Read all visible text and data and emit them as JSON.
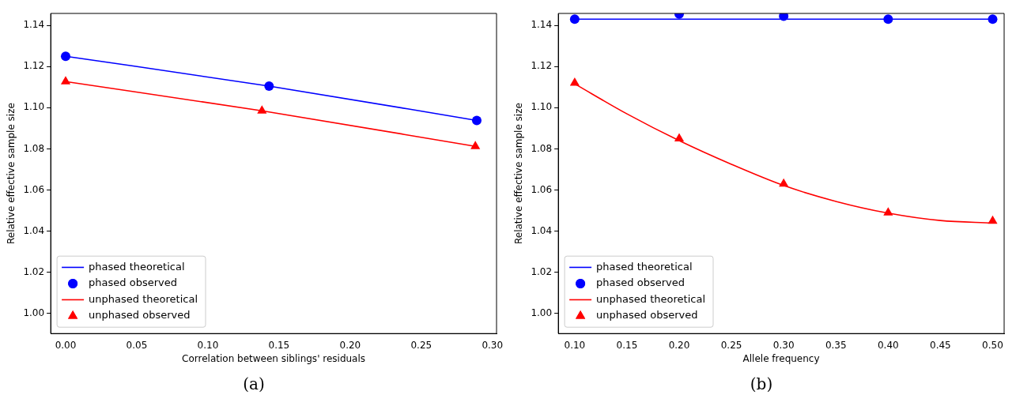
{
  "chart_data": [
    {
      "type": "line",
      "xlabel": "Correlation between siblings' residuals",
      "ylabel": "Relative effective sample size",
      "annotations": [
        "(a)"
      ],
      "legend": "bottom left",
      "grid": false,
      "xlim": [
        -0.0105,
        0.3029
      ],
      "xticks": [
        {
          "value": 0,
          "label": "0.00"
        },
        {
          "value": 0.05,
          "label": "0.05"
        },
        {
          "value": 0.1,
          "label": "0.10"
        },
        {
          "value": 0.15,
          "label": "0.15"
        },
        {
          "value": 0.2,
          "label": "0.20"
        },
        {
          "value": 0.25,
          "label": "0.25"
        },
        {
          "value": 0.3,
          "label": "0.30"
        }
      ],
      "ylim": [
        0.9903,
        1.1458
      ],
      "yticks": [
        {
          "value": 1,
          "label": "1.00"
        },
        {
          "value": 1.02,
          "label": "1.02"
        },
        {
          "value": 1.04,
          "label": "1.04"
        },
        {
          "value": 1.06,
          "label": "1.06"
        },
        {
          "value": 1.08,
          "label": "1.08"
        },
        {
          "value": 1.1,
          "label": "1.10"
        },
        {
          "value": 1.12,
          "label": "1.12"
        },
        {
          "value": 1.14,
          "label": "1.14"
        }
      ],
      "series": [
        {
          "name": "phased theoretical",
          "type": "line",
          "color": "#0000ff",
          "marker": "none",
          "x": [
            0,
            0.143,
            0.289
          ],
          "values": [
            1.125,
            1.1105,
            1.0938
          ]
        },
        {
          "name": "phased observed",
          "type": "scatter",
          "color": "#0000ff",
          "marker": "circle",
          "x": [
            0,
            0.143,
            0.289
          ],
          "values": [
            1.125,
            1.1105,
            1.0938
          ]
        },
        {
          "name": "unphased theoretical",
          "type": "line",
          "color": "#ff0000",
          "marker": "none",
          "x": [
            0,
            0.138,
            0.288
          ],
          "values": [
            1.1127,
            1.0985,
            1.0812
          ]
        },
        {
          "name": "unphased observed",
          "type": "scatter",
          "color": "#ff0000",
          "marker": "triangle",
          "x": [
            0,
            0.138,
            0.288
          ],
          "values": [
            1.1127,
            1.0985,
            1.0812
          ]
        }
      ]
    },
    {
      "type": "line",
      "xlabel": "Allele frequency",
      "ylabel": "Relative effective sample size",
      "annotations": [
        "(b)"
      ],
      "legend": "bottom left",
      "grid": false,
      "xlim": [
        0.0843,
        0.511
      ],
      "xticks": [
        {
          "value": 0.1,
          "label": "0.10"
        },
        {
          "value": 0.15,
          "label": "0.15"
        },
        {
          "value": 0.2,
          "label": "0.20"
        },
        {
          "value": 0.25,
          "label": "0.25"
        },
        {
          "value": 0.3,
          "label": "0.30"
        },
        {
          "value": 0.35,
          "label": "0.35"
        },
        {
          "value": 0.4,
          "label": "0.40"
        },
        {
          "value": 0.45,
          "label": "0.45"
        },
        {
          "value": 0.5,
          "label": "0.50"
        }
      ],
      "ylim": [
        0.9903,
        1.1458
      ],
      "yticks": [
        {
          "value": 1,
          "label": "1.00"
        },
        {
          "value": 1.02,
          "label": "1.02"
        },
        {
          "value": 1.04,
          "label": "1.04"
        },
        {
          "value": 1.06,
          "label": "1.06"
        },
        {
          "value": 1.08,
          "label": "1.08"
        },
        {
          "value": 1.1,
          "label": "1.10"
        },
        {
          "value": 1.12,
          "label": "1.12"
        },
        {
          "value": 1.14,
          "label": "1.14"
        }
      ],
      "series": [
        {
          "name": "phased theoretical",
          "type": "line",
          "color": "#0000ff",
          "marker": "none",
          "x": [
            0.1,
            0.5
          ],
          "values": [
            1.143,
            1.143
          ]
        },
        {
          "name": "phased observed",
          "type": "scatter",
          "color": "#0000ff",
          "marker": "circle",
          "x": [
            0.1,
            0.2,
            0.3,
            0.4,
            0.5
          ],
          "values": [
            1.143,
            1.1455,
            1.1445,
            1.143,
            1.143
          ]
        },
        {
          "name": "unphased theoretical",
          "type": "line",
          "color": "#ff0000",
          "marker": "none",
          "x": [
            0.1,
            0.15,
            0.2,
            0.25,
            0.3,
            0.35,
            0.4,
            0.45,
            0.5
          ],
          "values": [
            1.1116,
            1.097,
            1.084,
            1.0725,
            1.0622,
            1.0545,
            1.0488,
            1.0452,
            1.044
          ]
        },
        {
          "name": "unphased observed",
          "type": "scatter",
          "color": "#ff0000",
          "marker": "triangle",
          "x": [
            0.1,
            0.2,
            0.3,
            0.4,
            0.5
          ],
          "values": [
            1.112,
            1.085,
            1.063,
            1.049,
            1.045
          ]
        }
      ]
    }
  ]
}
